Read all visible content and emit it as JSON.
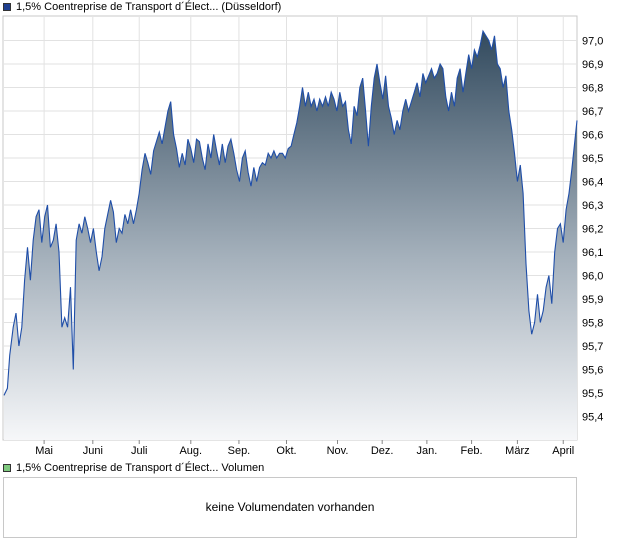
{
  "legend": {
    "price_label": "1,5% Coentreprise de Transport d´Élect... (Düsseldorf)",
    "price_color": "#1f3f8f",
    "volume_label": "1,5% Coentreprise de Transport d´Élect... Volumen",
    "volume_color": "#7fc97f"
  },
  "volume_panel": {
    "message": "keine Volumendaten vorhanden"
  },
  "chart_data": {
    "type": "area",
    "title": "",
    "xlabel": "",
    "ylabel": "",
    "ylim": [
      95.3,
      97.1
    ],
    "y_ticks": [
      "95,4",
      "95,5",
      "95,6",
      "95,7",
      "95,8",
      "95,9",
      "96,0",
      "96,1",
      "96,2",
      "96,3",
      "96,4",
      "96,5",
      "96,6",
      "96,7",
      "96,8",
      "96,9",
      "97,0"
    ],
    "x_ticks": [
      {
        "label": "Mai",
        "t": 0.07
      },
      {
        "label": "Juni",
        "t": 0.155
      },
      {
        "label": "Juli",
        "t": 0.236
      },
      {
        "label": "Aug.",
        "t": 0.326
      },
      {
        "label": "Sep.",
        "t": 0.41
      },
      {
        "label": "Okt.",
        "t": 0.493
      },
      {
        "label": "Nov.",
        "t": 0.582
      },
      {
        "label": "Dez.",
        "t": 0.66
      },
      {
        "label": "Jan.",
        "t": 0.738
      },
      {
        "label": "Feb.",
        "t": 0.816
      },
      {
        "label": "März",
        "t": 0.896
      },
      {
        "label": "April",
        "t": 0.976
      }
    ],
    "grid": true,
    "line_color": "#1f4ea8",
    "series": [
      {
        "points": [
          [
            0.0,
            95.49
          ],
          [
            0.006,
            95.52
          ],
          [
            0.01,
            95.66
          ],
          [
            0.016,
            95.78
          ],
          [
            0.021,
            95.84
          ],
          [
            0.026,
            95.7
          ],
          [
            0.031,
            95.78
          ],
          [
            0.036,
            95.98
          ],
          [
            0.041,
            96.12
          ],
          [
            0.046,
            95.98
          ],
          [
            0.051,
            96.15
          ],
          [
            0.056,
            96.25
          ],
          [
            0.061,
            96.28
          ],
          [
            0.066,
            96.14
          ],
          [
            0.071,
            96.25
          ],
          [
            0.076,
            96.3
          ],
          [
            0.081,
            96.12
          ],
          [
            0.086,
            96.15
          ],
          [
            0.091,
            96.22
          ],
          [
            0.096,
            96.1
          ],
          [
            0.101,
            95.78
          ],
          [
            0.106,
            95.82
          ],
          [
            0.111,
            95.78
          ],
          [
            0.116,
            95.95
          ],
          [
            0.121,
            95.6
          ],
          [
            0.126,
            96.15
          ],
          [
            0.131,
            96.22
          ],
          [
            0.136,
            96.18
          ],
          [
            0.141,
            96.25
          ],
          [
            0.146,
            96.2
          ],
          [
            0.151,
            96.14
          ],
          [
            0.156,
            96.2
          ],
          [
            0.161,
            96.1
          ],
          [
            0.166,
            96.02
          ],
          [
            0.171,
            96.08
          ],
          [
            0.176,
            96.2
          ],
          [
            0.181,
            96.26
          ],
          [
            0.186,
            96.32
          ],
          [
            0.191,
            96.27
          ],
          [
            0.196,
            96.14
          ],
          [
            0.201,
            96.2
          ],
          [
            0.206,
            96.18
          ],
          [
            0.211,
            96.26
          ],
          [
            0.216,
            96.22
          ],
          [
            0.221,
            96.28
          ],
          [
            0.226,
            96.22
          ],
          [
            0.231,
            96.28
          ],
          [
            0.236,
            96.35
          ],
          [
            0.241,
            96.45
          ],
          [
            0.246,
            96.52
          ],
          [
            0.251,
            96.48
          ],
          [
            0.256,
            96.43
          ],
          [
            0.261,
            96.53
          ],
          [
            0.266,
            96.57
          ],
          [
            0.271,
            96.61
          ],
          [
            0.276,
            96.56
          ],
          [
            0.281,
            96.63
          ],
          [
            0.286,
            96.7
          ],
          [
            0.291,
            96.74
          ],
          [
            0.296,
            96.6
          ],
          [
            0.301,
            96.54
          ],
          [
            0.306,
            96.46
          ],
          [
            0.311,
            96.52
          ],
          [
            0.316,
            96.47
          ],
          [
            0.321,
            96.58
          ],
          [
            0.326,
            96.54
          ],
          [
            0.331,
            96.48
          ],
          [
            0.336,
            96.58
          ],
          [
            0.341,
            96.57
          ],
          [
            0.346,
            96.5
          ],
          [
            0.351,
            96.45
          ],
          [
            0.356,
            96.56
          ],
          [
            0.361,
            96.5
          ],
          [
            0.366,
            96.6
          ],
          [
            0.371,
            96.53
          ],
          [
            0.376,
            96.47
          ],
          [
            0.381,
            96.56
          ],
          [
            0.386,
            96.48
          ],
          [
            0.391,
            96.55
          ],
          [
            0.396,
            96.58
          ],
          [
            0.401,
            96.52
          ],
          [
            0.406,
            96.45
          ],
          [
            0.411,
            96.4
          ],
          [
            0.416,
            96.5
          ],
          [
            0.421,
            96.53
          ],
          [
            0.426,
            96.44
          ],
          [
            0.431,
            96.38
          ],
          [
            0.436,
            96.46
          ],
          [
            0.441,
            96.4
          ],
          [
            0.446,
            96.46
          ],
          [
            0.451,
            96.48
          ],
          [
            0.456,
            96.47
          ],
          [
            0.461,
            96.52
          ],
          [
            0.466,
            96.5
          ],
          [
            0.471,
            96.53
          ],
          [
            0.476,
            96.5
          ],
          [
            0.481,
            96.52
          ],
          [
            0.486,
            96.52
          ],
          [
            0.491,
            96.5
          ],
          [
            0.496,
            96.54
          ],
          [
            0.501,
            96.55
          ],
          [
            0.506,
            96.6
          ],
          [
            0.511,
            96.65
          ],
          [
            0.516,
            96.72
          ],
          [
            0.521,
            96.8
          ],
          [
            0.526,
            96.72
          ],
          [
            0.531,
            96.78
          ],
          [
            0.536,
            96.72
          ],
          [
            0.541,
            96.75
          ],
          [
            0.546,
            96.7
          ],
          [
            0.551,
            96.75
          ],
          [
            0.556,
            96.72
          ],
          [
            0.561,
            96.76
          ],
          [
            0.566,
            96.72
          ],
          [
            0.571,
            96.78
          ],
          [
            0.576,
            96.75
          ],
          [
            0.581,
            96.7
          ],
          [
            0.586,
            96.78
          ],
          [
            0.591,
            96.72
          ],
          [
            0.596,
            96.74
          ],
          [
            0.601,
            96.62
          ],
          [
            0.606,
            96.56
          ],
          [
            0.611,
            96.72
          ],
          [
            0.616,
            96.68
          ],
          [
            0.621,
            96.8
          ],
          [
            0.626,
            96.84
          ],
          [
            0.631,
            96.7
          ],
          [
            0.636,
            96.55
          ],
          [
            0.641,
            96.72
          ],
          [
            0.646,
            96.84
          ],
          [
            0.651,
            96.9
          ],
          [
            0.656,
            96.82
          ],
          [
            0.661,
            96.75
          ],
          [
            0.666,
            96.85
          ],
          [
            0.671,
            96.72
          ],
          [
            0.676,
            96.67
          ],
          [
            0.681,
            96.6
          ],
          [
            0.686,
            96.66
          ],
          [
            0.691,
            96.62
          ],
          [
            0.696,
            96.7
          ],
          [
            0.701,
            96.75
          ],
          [
            0.706,
            96.7
          ],
          [
            0.711,
            96.74
          ],
          [
            0.716,
            96.78
          ],
          [
            0.721,
            96.82
          ],
          [
            0.726,
            96.76
          ],
          [
            0.731,
            96.86
          ],
          [
            0.736,
            96.82
          ],
          [
            0.741,
            96.85
          ],
          [
            0.746,
            96.88
          ],
          [
            0.751,
            96.84
          ],
          [
            0.756,
            96.86
          ],
          [
            0.761,
            96.9
          ],
          [
            0.766,
            96.88
          ],
          [
            0.771,
            96.76
          ],
          [
            0.776,
            96.7
          ],
          [
            0.781,
            96.78
          ],
          [
            0.786,
            96.72
          ],
          [
            0.791,
            96.84
          ],
          [
            0.796,
            96.88
          ],
          [
            0.801,
            96.78
          ],
          [
            0.806,
            96.86
          ],
          [
            0.811,
            96.94
          ],
          [
            0.816,
            96.88
          ],
          [
            0.821,
            96.96
          ],
          [
            0.826,
            96.93
          ],
          [
            0.831,
            96.98
          ],
          [
            0.836,
            97.04
          ],
          [
            0.841,
            97.02
          ],
          [
            0.846,
            97.0
          ],
          [
            0.851,
            96.96
          ],
          [
            0.856,
            97.02
          ],
          [
            0.861,
            96.9
          ],
          [
            0.866,
            96.88
          ],
          [
            0.871,
            96.8
          ],
          [
            0.876,
            96.85
          ],
          [
            0.881,
            96.7
          ],
          [
            0.886,
            96.62
          ],
          [
            0.891,
            96.52
          ],
          [
            0.896,
            96.4
          ],
          [
            0.901,
            96.47
          ],
          [
            0.906,
            96.35
          ],
          [
            0.911,
            96.05
          ],
          [
            0.916,
            95.85
          ],
          [
            0.921,
            95.75
          ],
          [
            0.926,
            95.8
          ],
          [
            0.931,
            95.92
          ],
          [
            0.936,
            95.8
          ],
          [
            0.941,
            95.85
          ],
          [
            0.946,
            95.95
          ],
          [
            0.951,
            96.0
          ],
          [
            0.956,
            95.88
          ],
          [
            0.961,
            96.1
          ],
          [
            0.966,
            96.2
          ],
          [
            0.971,
            96.22
          ],
          [
            0.976,
            96.14
          ],
          [
            0.981,
            96.28
          ],
          [
            0.986,
            96.35
          ],
          [
            0.991,
            96.45
          ],
          [
            1.0,
            96.66
          ]
        ]
      }
    ]
  }
}
